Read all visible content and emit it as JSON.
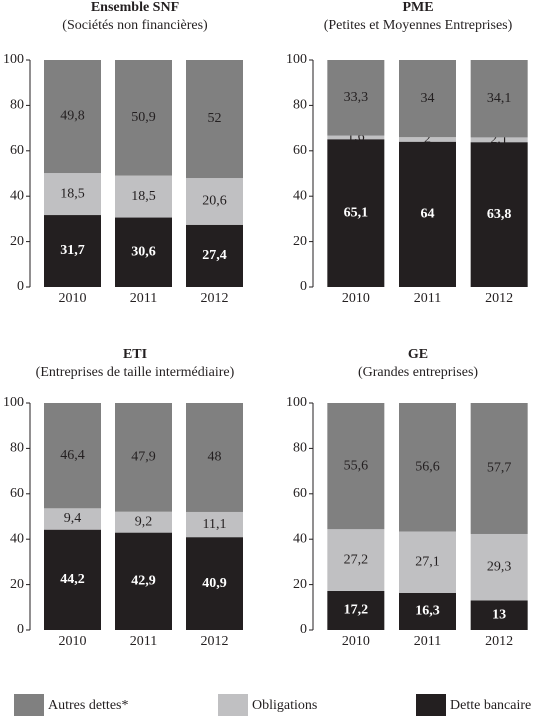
{
  "chart_data": [
    {
      "type": "bar",
      "stacked": true,
      "title": "Ensemble SNF",
      "subtitle": "(Sociétés non financières)",
      "categories": [
        "2010",
        "2011",
        "2012"
      ],
      "series": [
        {
          "values": [
            49.8,
            50.9,
            52
          ],
          "value_labels": [
            "49,8",
            "50,9",
            "52"
          ]
        },
        {
          "values": [
            18.5,
            18.5,
            20.6
          ],
          "value_labels": [
            "18,5",
            "18,5",
            "20,6"
          ]
        },
        {
          "values": [
            31.7,
            30.6,
            27.4
          ],
          "value_labels": [
            "31,7",
            "30,6",
            "27,4"
          ]
        }
      ],
      "ylim": [
        0,
        100
      ],
      "yticks": [
        0,
        20,
        40,
        60,
        80,
        100
      ]
    },
    {
      "type": "bar",
      "stacked": true,
      "title": "PME",
      "subtitle": "(Petites et Moyennes Entreprises)",
      "categories": [
        "2010",
        "2011",
        "2012"
      ],
      "series": [
        {
          "values": [
            33.3,
            34,
            34.1
          ],
          "value_labels": [
            "33,3",
            "34",
            "34,1"
          ]
        },
        {
          "values": [
            1.6,
            2,
            2.1
          ],
          "value_labels": [
            "1,6",
            "2",
            "2,1"
          ]
        },
        {
          "values": [
            65.1,
            64,
            63.8
          ],
          "value_labels": [
            "65,1",
            "64",
            "63,8"
          ]
        }
      ],
      "ylim": [
        0,
        100
      ],
      "yticks": [
        0,
        20,
        40,
        60,
        80,
        100
      ]
    },
    {
      "type": "bar",
      "stacked": true,
      "title": "ETI",
      "subtitle": "(Entreprises de taille intermédiaire)",
      "categories": [
        "2010",
        "2011",
        "2012"
      ],
      "series": [
        {
          "values": [
            46.4,
            47.9,
            48
          ],
          "value_labels": [
            "46,4",
            "47,9",
            "48"
          ]
        },
        {
          "values": [
            9.4,
            9.2,
            11.1
          ],
          "value_labels": [
            "9,4",
            "9,2",
            "11,1"
          ]
        },
        {
          "values": [
            44.2,
            42.9,
            40.9
          ],
          "value_labels": [
            "44,2",
            "42,9",
            "40,9"
          ]
        }
      ],
      "ylim": [
        0,
        100
      ],
      "yticks": [
        0,
        20,
        40,
        60,
        80,
        100
      ]
    },
    {
      "type": "bar",
      "stacked": true,
      "title": "GE",
      "subtitle": "(Grandes entreprises)",
      "categories": [
        "2010",
        "2011",
        "2012"
      ],
      "series": [
        {
          "values": [
            55.6,
            56.6,
            57.7
          ],
          "value_labels": [
            "55,6",
            "56,6",
            "57,7"
          ]
        },
        {
          "values": [
            27.2,
            27.1,
            29.3
          ],
          "value_labels": [
            "27,2",
            "27,1",
            "29,3"
          ]
        },
        {
          "values": [
            17.2,
            16.3,
            13
          ],
          "value_labels": [
            "17,2",
            "16,3",
            "13"
          ]
        }
      ],
      "ylim": [
        0,
        100
      ],
      "yticks": [
        0,
        20,
        40,
        60,
        80,
        100
      ]
    }
  ],
  "legend": {
    "items": [
      {
        "name": "Autres dettes*",
        "color": "#808080"
      },
      {
        "name": "Obligations",
        "color": "#c0c0c2"
      },
      {
        "name": "Dette bancaire",
        "color": "#231f20"
      }
    ]
  }
}
